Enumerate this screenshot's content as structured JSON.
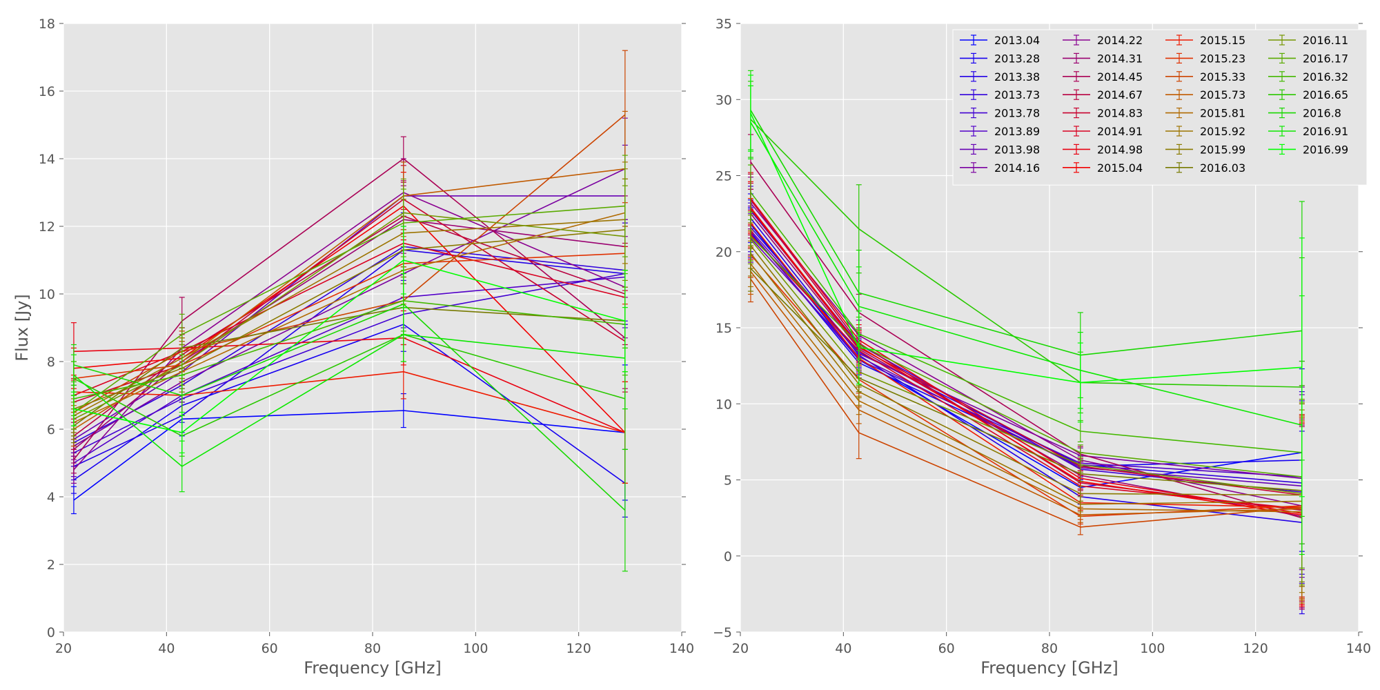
{
  "chart_data": [
    {
      "type": "line",
      "panel": "left",
      "title": "",
      "xlabel": "Frequency [GHz]",
      "ylabel": "Flux [Jy]",
      "xlim": [
        20,
        140
      ],
      "ylim": [
        0,
        18
      ],
      "xticks": [
        20,
        40,
        60,
        80,
        100,
        120,
        140
      ],
      "yticks": [
        0,
        2,
        4,
        6,
        8,
        10,
        12,
        14,
        16,
        18
      ],
      "grid": true,
      "x": [
        22,
        43,
        86,
        129
      ],
      "series": [
        {
          "name": "2013.04",
          "color": "#0000ff",
          "values": [
            3.9,
            6.3,
            6.55,
            5.9
          ],
          "errors": [
            0.4,
            0.5,
            0.5,
            2.0
          ]
        },
        {
          "name": "2013.28",
          "color": "#1600f0",
          "values": [
            4.5,
            6.7,
            9.1,
            4.4
          ],
          "errors": [
            0.4,
            0.5,
            0.8,
            1.0
          ]
        },
        {
          "name": "2013.38",
          "color": "#2200e6",
          "values": [
            4.9,
            6.4,
            11.3,
            10.6
          ],
          "errors": [
            0.4,
            0.5,
            1.0,
            1.5
          ]
        },
        {
          "name": "2013.73",
          "color": "#3000dc",
          "values": [
            5.6,
            7.3,
            11.4,
            10.7
          ],
          "errors": [
            0.4,
            0.5,
            1.0,
            1.5
          ]
        },
        {
          "name": "2013.78",
          "color": "#4100d2",
          "values": [
            5.3,
            6.9,
            9.4,
            10.6
          ],
          "errors": [
            0.4,
            0.5,
            0.9,
            1.5
          ]
        },
        {
          "name": "2013.89",
          "color": "#5200c8",
          "values": [
            5.0,
            7.0,
            9.9,
            10.5
          ],
          "errors": [
            0.4,
            0.5,
            0.9,
            1.5
          ]
        },
        {
          "name": "2013.98",
          "color": "#6600b4",
          "values": [
            5.7,
            7.7,
            12.9,
            12.9
          ],
          "errors": [
            0.4,
            0.6,
            1.0,
            1.5
          ]
        },
        {
          "name": "2014.16",
          "color": "#7a00a0",
          "values": [
            5.5,
            7.4,
            10.6,
            13.7
          ],
          "errors": [
            0.4,
            0.6,
            1.0,
            1.5
          ]
        },
        {
          "name": "2014.22",
          "color": "#8a0090",
          "values": [
            4.8,
            8.4,
            13.0,
            10.2
          ],
          "errors": [
            0.4,
            0.6,
            1.0,
            1.5
          ]
        },
        {
          "name": "2014.31",
          "color": "#9a0070",
          "values": [
            5.4,
            8.0,
            12.2,
            11.4
          ],
          "errors": [
            0.4,
            0.6,
            1.0,
            1.5
          ]
        },
        {
          "name": "2014.45",
          "color": "#aa0055",
          "values": [
            5.1,
            9.2,
            14.0,
            8.7
          ],
          "errors": [
            0.4,
            0.7,
            0.65,
            1.5
          ]
        },
        {
          "name": "2014.67",
          "color": "#b80040",
          "values": [
            5.8,
            8.2,
            12.3,
            10.0
          ],
          "errors": [
            0.4,
            0.6,
            1.0,
            1.5
          ]
        },
        {
          "name": "2014.83",
          "color": "#c8002e",
          "values": [
            6.8,
            7.9,
            12.8,
            8.6
          ],
          "errors": [
            0.5,
            0.6,
            1.0,
            1.5
          ]
        },
        {
          "name": "2014.91",
          "color": "#d80020",
          "values": [
            7.0,
            8.3,
            11.5,
            9.9
          ],
          "errors": [
            0.5,
            0.6,
            1.0,
            1.5
          ]
        },
        {
          "name": "2014.98",
          "color": "#e80010",
          "values": [
            8.3,
            8.4,
            8.7,
            5.9
          ],
          "errors": [
            0.85,
            0.6,
            0.8,
            1.5
          ]
        },
        {
          "name": "2015.04",
          "color": "#f20000",
          "values": [
            7.8,
            8.1,
            12.6,
            5.9
          ],
          "errors": [
            0.6,
            0.6,
            1.0,
            1.5
          ]
        },
        {
          "name": "2015.15",
          "color": "#ee1a00",
          "values": [
            7.1,
            7.0,
            7.7,
            5.9
          ],
          "errors": [
            0.5,
            0.6,
            0.8,
            1.5
          ]
        },
        {
          "name": "2015.23",
          "color": "#e03000",
          "values": [
            7.5,
            7.9,
            10.9,
            11.2
          ],
          "errors": [
            0.5,
            0.6,
            1.0,
            1.5
          ]
        },
        {
          "name": "2015.33",
          "color": "#cc4400",
          "values": [
            6.5,
            8.3,
            9.8,
            15.3
          ],
          "errors": [
            0.5,
            0.6,
            1.0,
            1.9
          ]
        },
        {
          "name": "2015.73",
          "color": "#c05a00",
          "values": [
            6.0,
            8.0,
            12.9,
            13.7
          ],
          "errors": [
            0.5,
            0.6,
            1.0,
            1.7
          ]
        },
        {
          "name": "2015.81",
          "color": "#b06a00",
          "values": [
            6.2,
            7.7,
            10.7,
            12.4
          ],
          "errors": [
            0.5,
            0.6,
            1.0,
            1.5
          ]
        },
        {
          "name": "2015.92",
          "color": "#9c7400",
          "values": [
            6.4,
            8.1,
            11.8,
            12.2
          ],
          "errors": [
            0.5,
            0.6,
            1.0,
            1.5
          ]
        },
        {
          "name": "2015.99",
          "color": "#8a7a00",
          "values": [
            6.6,
            7.8,
            11.3,
            11.9
          ],
          "errors": [
            0.5,
            0.6,
            1.0,
            1.5
          ]
        },
        {
          "name": "2016.03",
          "color": "#777a00",
          "values": [
            6.1,
            8.4,
            9.6,
            9.2
          ],
          "errors": [
            0.5,
            0.6,
            0.9,
            1.5
          ]
        },
        {
          "name": "2016.11",
          "color": "#749600",
          "values": [
            6.3,
            7.9,
            12.4,
            11.7
          ],
          "errors": [
            0.5,
            0.6,
            1.0,
            1.5
          ]
        },
        {
          "name": "2016.17",
          "color": "#5aaa00",
          "values": [
            6.5,
            8.8,
            12.1,
            12.6
          ],
          "errors": [
            0.5,
            0.6,
            1.0,
            1.5
          ]
        },
        {
          "name": "2016.32",
          "color": "#44b800",
          "values": [
            6.9,
            7.6,
            9.8,
            9.1
          ],
          "errors": [
            0.5,
            0.6,
            0.9,
            1.5
          ]
        },
        {
          "name": "2016.65",
          "color": "#2ac800",
          "values": [
            7.5,
            5.8,
            8.8,
            6.9
          ],
          "errors": [
            0.5,
            0.6,
            0.8,
            1.5
          ]
        },
        {
          "name": "2016.8",
          "color": "#18d800",
          "values": [
            7.9,
            7.0,
            9.7,
            3.6
          ],
          "errors": [
            0.6,
            0.6,
            0.9,
            1.8
          ]
        },
        {
          "name": "2016.91",
          "color": "#0ce800",
          "values": [
            7.6,
            4.9,
            8.8,
            8.1
          ],
          "errors": [
            0.6,
            0.75,
            0.8,
            1.5
          ]
        },
        {
          "name": "2016.99",
          "color": "#00ff00",
          "values": [
            6.6,
            5.9,
            11.0,
            9.2
          ],
          "errors": [
            0.5,
            0.6,
            1.0,
            1.5
          ]
        }
      ]
    },
    {
      "type": "line",
      "panel": "right",
      "title": "",
      "xlabel": "Frequency [GHz]",
      "ylabel": "",
      "xlim": [
        20,
        140
      ],
      "ylim": [
        -5,
        35
      ],
      "xticks": [
        20,
        40,
        60,
        80,
        100,
        120,
        140
      ],
      "yticks": [
        -5,
        0,
        5,
        10,
        15,
        20,
        25,
        30,
        35
      ],
      "grid": true,
      "legend": {
        "placement": "top-right",
        "columns": 4
      },
      "x": [
        22,
        43,
        86,
        129
      ],
      "series": [
        {
          "name": "2013.04",
          "color": "#0000ff",
          "values": [
            21.8,
            12.9,
            4.5,
            6.8
          ],
          "errors": [
            1.6,
            1.0,
            0.5,
            6.0
          ]
        },
        {
          "name": "2013.28",
          "color": "#1600f0",
          "values": [
            21.3,
            12.7,
            5.9,
            6.3
          ],
          "errors": [
            1.6,
            1.0,
            0.5,
            6.0
          ]
        },
        {
          "name": "2013.38",
          "color": "#2200e6",
          "values": [
            22.2,
            13.2,
            3.9,
            2.2
          ],
          "errors": [
            1.6,
            1.0,
            0.5,
            6.0
          ]
        },
        {
          "name": "2013.73",
          "color": "#3000dc",
          "values": [
            21.6,
            13.4,
            6.0,
            4.8
          ],
          "errors": [
            1.6,
            1.0,
            0.5,
            6.0
          ]
        },
        {
          "name": "2013.78",
          "color": "#4100d2",
          "values": [
            22.7,
            13.9,
            5.7,
            4.2
          ],
          "errors": [
            1.6,
            1.0,
            0.5,
            6.0
          ]
        },
        {
          "name": "2013.89",
          "color": "#5200c8",
          "values": [
            21.2,
            12.9,
            6.1,
            5.2
          ],
          "errors": [
            1.6,
            1.0,
            0.5,
            6.0
          ]
        },
        {
          "name": "2013.98",
          "color": "#6600b4",
          "values": [
            20.9,
            13.1,
            5.8,
            4.6
          ],
          "errors": [
            1.6,
            1.0,
            0.5,
            6.0
          ]
        },
        {
          "name": "2014.16",
          "color": "#7a00a0",
          "values": [
            21.4,
            13.3,
            6.6,
            5.1
          ],
          "errors": [
            1.6,
            1.0,
            0.5,
            6.0
          ]
        },
        {
          "name": "2014.22",
          "color": "#8a0090",
          "values": [
            23.2,
            14.5,
            6.3,
            3.3
          ],
          "errors": [
            1.7,
            1.0,
            0.5,
            6.0
          ]
        },
        {
          "name": "2014.31",
          "color": "#9a0070",
          "values": [
            22.5,
            13.6,
            5.3,
            2.6
          ],
          "errors": [
            1.6,
            1.0,
            0.5,
            6.0
          ]
        },
        {
          "name": "2014.45",
          "color": "#aa0055",
          "values": [
            25.9,
            16.0,
            6.7,
            2.5
          ],
          "errors": [
            1.8,
            1.2,
            0.5,
            6.0
          ]
        },
        {
          "name": "2014.67",
          "color": "#b80040",
          "values": [
            23.4,
            14.0,
            4.8,
            3.0
          ],
          "errors": [
            1.7,
            1.0,
            0.5,
            6.0
          ]
        },
        {
          "name": "2014.83",
          "color": "#c8002e",
          "values": [
            22.8,
            13.7,
            5.9,
            4.0
          ],
          "errors": [
            1.7,
            1.0,
            0.5,
            6.0
          ]
        },
        {
          "name": "2014.91",
          "color": "#d80020",
          "values": [
            21.1,
            13.5,
            4.6,
            3.1
          ],
          "errors": [
            1.6,
            1.0,
            0.5,
            6.0
          ]
        },
        {
          "name": "2014.98",
          "color": "#e80010",
          "values": [
            23.5,
            14.2,
            5.1,
            2.8
          ],
          "errors": [
            1.7,
            1.0,
            0.5,
            6.0
          ]
        },
        {
          "name": "2015.04",
          "color": "#f20000",
          "values": [
            22.9,
            13.8,
            4.9,
            2.7
          ],
          "errors": [
            1.7,
            1.0,
            0.5,
            6.0
          ]
        },
        {
          "name": "2015.15",
          "color": "#ee1a00",
          "values": [
            21.9,
            13.0,
            3.5,
            3.2
          ],
          "errors": [
            1.6,
            1.0,
            0.5,
            6.0
          ]
        },
        {
          "name": "2015.23",
          "color": "#e03000",
          "values": [
            19.8,
            11.6,
            2.6,
            3.3
          ],
          "errors": [
            1.5,
            0.9,
            0.5,
            6.0
          ]
        },
        {
          "name": "2015.33",
          "color": "#cc4400",
          "values": [
            18.2,
            8.1,
            1.9,
            3.2
          ],
          "errors": [
            1.5,
            1.7,
            0.5,
            6.0
          ]
        },
        {
          "name": "2015.73",
          "color": "#c05a00",
          "values": [
            18.7,
            9.6,
            2.7,
            3.1
          ],
          "errors": [
            1.5,
            0.9,
            0.5,
            6.0
          ]
        },
        {
          "name": "2015.81",
          "color": "#b06a00",
          "values": [
            19.2,
            10.2,
            3.1,
            2.9
          ],
          "errors": [
            1.5,
            0.9,
            0.5,
            6.0
          ]
        },
        {
          "name": "2015.92",
          "color": "#9c7400",
          "values": [
            19.9,
            10.8,
            3.4,
            3.6
          ],
          "errors": [
            1.5,
            0.9,
            0.5,
            6.0
          ]
        },
        {
          "name": "2015.99",
          "color": "#8a7a00",
          "values": [
            20.4,
            11.3,
            4.1,
            4.0
          ],
          "errors": [
            1.5,
            0.9,
            0.5,
            6.0
          ]
        },
        {
          "name": "2016.03",
          "color": "#777a00",
          "values": [
            18.9,
            11.7,
            5.4,
            4.3
          ],
          "errors": [
            1.5,
            0.9,
            0.5,
            6.0
          ]
        },
        {
          "name": "2016.11",
          "color": "#749600",
          "values": [
            20.8,
            12.1,
            6.0,
            4.1
          ],
          "errors": [
            1.6,
            0.9,
            0.5,
            6.0
          ]
        },
        {
          "name": "2016.17",
          "color": "#5aaa00",
          "values": [
            21.0,
            13.9,
            6.8,
            5.2
          ],
          "errors": [
            1.6,
            1.0,
            0.5,
            6.0
          ]
        },
        {
          "name": "2016.32",
          "color": "#44b800",
          "values": [
            23.9,
            14.6,
            8.2,
            6.8
          ],
          "errors": [
            1.8,
            1.1,
            0.7,
            6.0
          ]
        },
        {
          "name": "2016.65",
          "color": "#2ac800",
          "values": [
            28.7,
            21.5,
            11.4,
            11.1
          ],
          "errors": [
            2.5,
            2.9,
            2.0,
            8.5
          ]
        },
        {
          "name": "2016.8",
          "color": "#18d800",
          "values": [
            29.3,
            17.3,
            13.2,
            14.8
          ],
          "errors": [
            2.6,
            2.8,
            2.8,
            8.5
          ]
        },
        {
          "name": "2016.91",
          "color": "#0ce800",
          "values": [
            28.5,
            16.4,
            12.2,
            8.6
          ],
          "errors": [
            2.4,
            2.6,
            2.5,
            8.5
          ]
        },
        {
          "name": "2016.99",
          "color": "#00ff00",
          "values": [
            29.1,
            13.7,
            11.4,
            12.4
          ],
          "errors": [
            2.5,
            2.4,
            2.6,
            8.5
          ]
        }
      ]
    }
  ]
}
